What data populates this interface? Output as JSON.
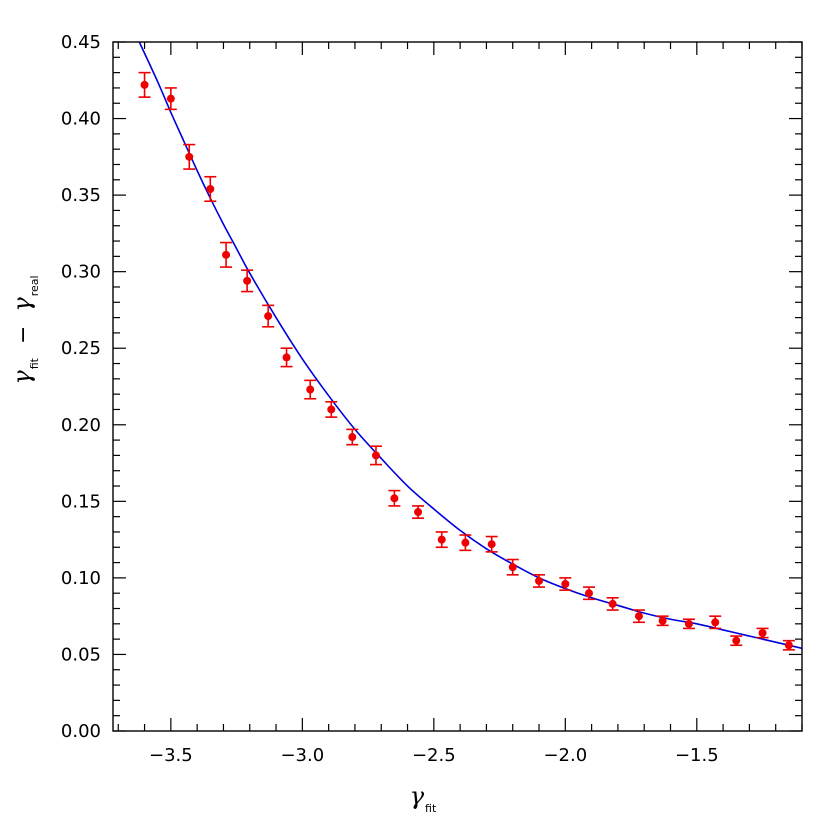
{
  "chart_data": {
    "type": "scatter",
    "title": "",
    "xlabel": {
      "symbol": "γ",
      "subscript": "fit"
    },
    "ylabel": {
      "symbol_a": "γ",
      "subscript_a": "fit",
      "operator": "−",
      "symbol_b": "γ",
      "subscript_b": "real"
    },
    "xlim": [
      -3.72,
      -1.1
    ],
    "ylim": [
      0.0,
      0.45
    ],
    "x_ticks": [
      -3.5,
      -3.0,
      -2.5,
      -2.0,
      -1.5
    ],
    "x_tick_labels": [
      "−3.5",
      "−3.0",
      "−2.5",
      "−2.0",
      "−1.5"
    ],
    "x_minor_step": 0.1,
    "y_ticks": [
      0.0,
      0.05,
      0.1,
      0.15,
      0.2,
      0.25,
      0.3,
      0.35,
      0.4,
      0.45
    ],
    "y_tick_labels": [
      "0.00",
      "0.05",
      "0.10",
      "0.15",
      "0.20",
      "0.25",
      "0.30",
      "0.35",
      "0.40",
      "0.45"
    ],
    "y_minor_step": 0.01,
    "grid": false,
    "series": [
      {
        "kind": "points_with_error_bars",
        "color": "#ee0000",
        "x": [
          -3.6,
          -3.5,
          -3.43,
          -3.35,
          -3.29,
          -3.21,
          -3.13,
          -3.06,
          -2.97,
          -2.89,
          -2.81,
          -2.72,
          -2.65,
          -2.56,
          -2.47,
          -2.38,
          -2.28,
          -2.2,
          -2.1,
          -2.0,
          -1.91,
          -1.82,
          -1.72,
          -1.63,
          -1.53,
          -1.43,
          -1.35,
          -1.25,
          -1.15
        ],
        "y": [
          0.422,
          0.413,
          0.375,
          0.354,
          0.311,
          0.294,
          0.271,
          0.244,
          0.223,
          0.21,
          0.192,
          0.18,
          0.152,
          0.143,
          0.125,
          0.123,
          0.122,
          0.107,
          0.098,
          0.096,
          0.09,
          0.083,
          0.075,
          0.072,
          0.07,
          0.071,
          0.059,
          0.064,
          0.056
        ],
        "err": [
          0.008,
          0.007,
          0.008,
          0.008,
          0.008,
          0.007,
          0.007,
          0.006,
          0.006,
          0.005,
          0.005,
          0.006,
          0.005,
          0.004,
          0.005,
          0.005,
          0.005,
          0.005,
          0.004,
          0.004,
          0.004,
          0.004,
          0.004,
          0.003,
          0.003,
          0.004,
          0.003,
          0.003,
          0.003
        ]
      },
      {
        "kind": "curve",
        "color": "#0000dd",
        "x": [
          -3.62,
          -3.55,
          -3.5,
          -3.45,
          -3.4,
          -3.35,
          -3.3,
          -3.25,
          -3.2,
          -3.1,
          -3.0,
          -2.9,
          -2.8,
          -2.7,
          -2.6,
          -2.5,
          -2.4,
          -2.3,
          -2.2,
          -2.1,
          -2.0,
          -1.9,
          -1.8,
          -1.7,
          -1.6,
          -1.5,
          -1.4,
          -1.3,
          -1.2,
          -1.1
        ],
        "y": [
          0.45,
          0.424,
          0.404,
          0.385,
          0.366,
          0.348,
          0.331,
          0.315,
          0.299,
          0.27,
          0.243,
          0.219,
          0.197,
          0.178,
          0.16,
          0.145,
          0.131,
          0.119,
          0.109,
          0.1,
          0.093,
          0.087,
          0.082,
          0.077,
          0.073,
          0.07,
          0.066,
          0.062,
          0.058,
          0.054
        ]
      }
    ]
  }
}
